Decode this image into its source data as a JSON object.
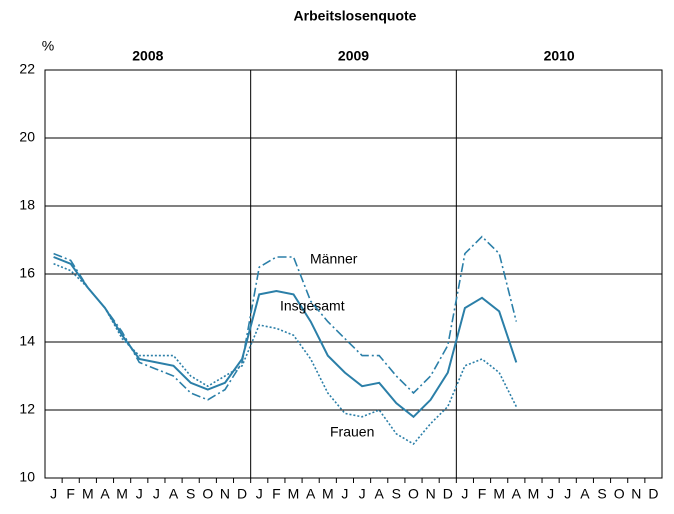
{
  "chart_data": {
    "type": "line",
    "title": "Arbeitslosenquote",
    "y_label": "%",
    "years": [
      "2008",
      "2009",
      "2010"
    ],
    "categories": [
      "J",
      "F",
      "M",
      "A",
      "M",
      "J",
      "J",
      "A",
      "S",
      "O",
      "N",
      "D",
      "J",
      "F",
      "M",
      "A",
      "M",
      "J",
      "J",
      "A",
      "S",
      "O",
      "N",
      "D",
      "J",
      "F",
      "M",
      "A",
      "M",
      "J",
      "J",
      "A",
      "S",
      "O",
      "N",
      "D"
    ],
    "series": [
      {
        "name": "Insgesamt",
        "color": "#2b7fa8",
        "line_style": "solid",
        "values": [
          16.5,
          16.3,
          15.6,
          15.0,
          14.2,
          13.5,
          13.4,
          13.3,
          12.8,
          12.6,
          12.8,
          13.5,
          15.4,
          15.5,
          15.4,
          14.6,
          13.6,
          13.1,
          12.7,
          12.8,
          12.2,
          11.8,
          12.3,
          13.1,
          15.0,
          15.3,
          14.9,
          13.4,
          null,
          null,
          null,
          null,
          null,
          null,
          null,
          null
        ]
      },
      {
        "name": "Männer",
        "color": "#2b7fa8",
        "line_style": "dash-dot",
        "values": [
          16.6,
          16.4,
          15.6,
          15.0,
          14.3,
          13.4,
          13.2,
          13.0,
          12.5,
          12.3,
          12.6,
          13.4,
          16.2,
          16.5,
          16.5,
          15.2,
          14.6,
          14.1,
          13.6,
          13.6,
          13.0,
          12.5,
          13.0,
          13.9,
          16.6,
          17.1,
          16.6,
          14.6,
          null,
          null,
          null,
          null,
          null,
          null,
          null,
          null
        ]
      },
      {
        "name": "Frauen",
        "color": "#2b7fa8",
        "line_style": "dotted",
        "values": [
          16.3,
          16.1,
          15.6,
          15.0,
          14.1,
          13.6,
          13.6,
          13.6,
          13.0,
          12.7,
          13.0,
          13.3,
          14.5,
          14.4,
          14.2,
          13.5,
          12.5,
          11.9,
          11.8,
          12.0,
          11.3,
          11.0,
          11.6,
          12.1,
          13.3,
          13.5,
          13.1,
          12.1,
          null,
          null,
          null,
          null,
          null,
          null,
          null,
          null
        ]
      }
    ],
    "ylim": [
      10,
      22
    ],
    "yticks": [
      10,
      12,
      14,
      16,
      18,
      20,
      22
    ],
    "grid": true
  }
}
